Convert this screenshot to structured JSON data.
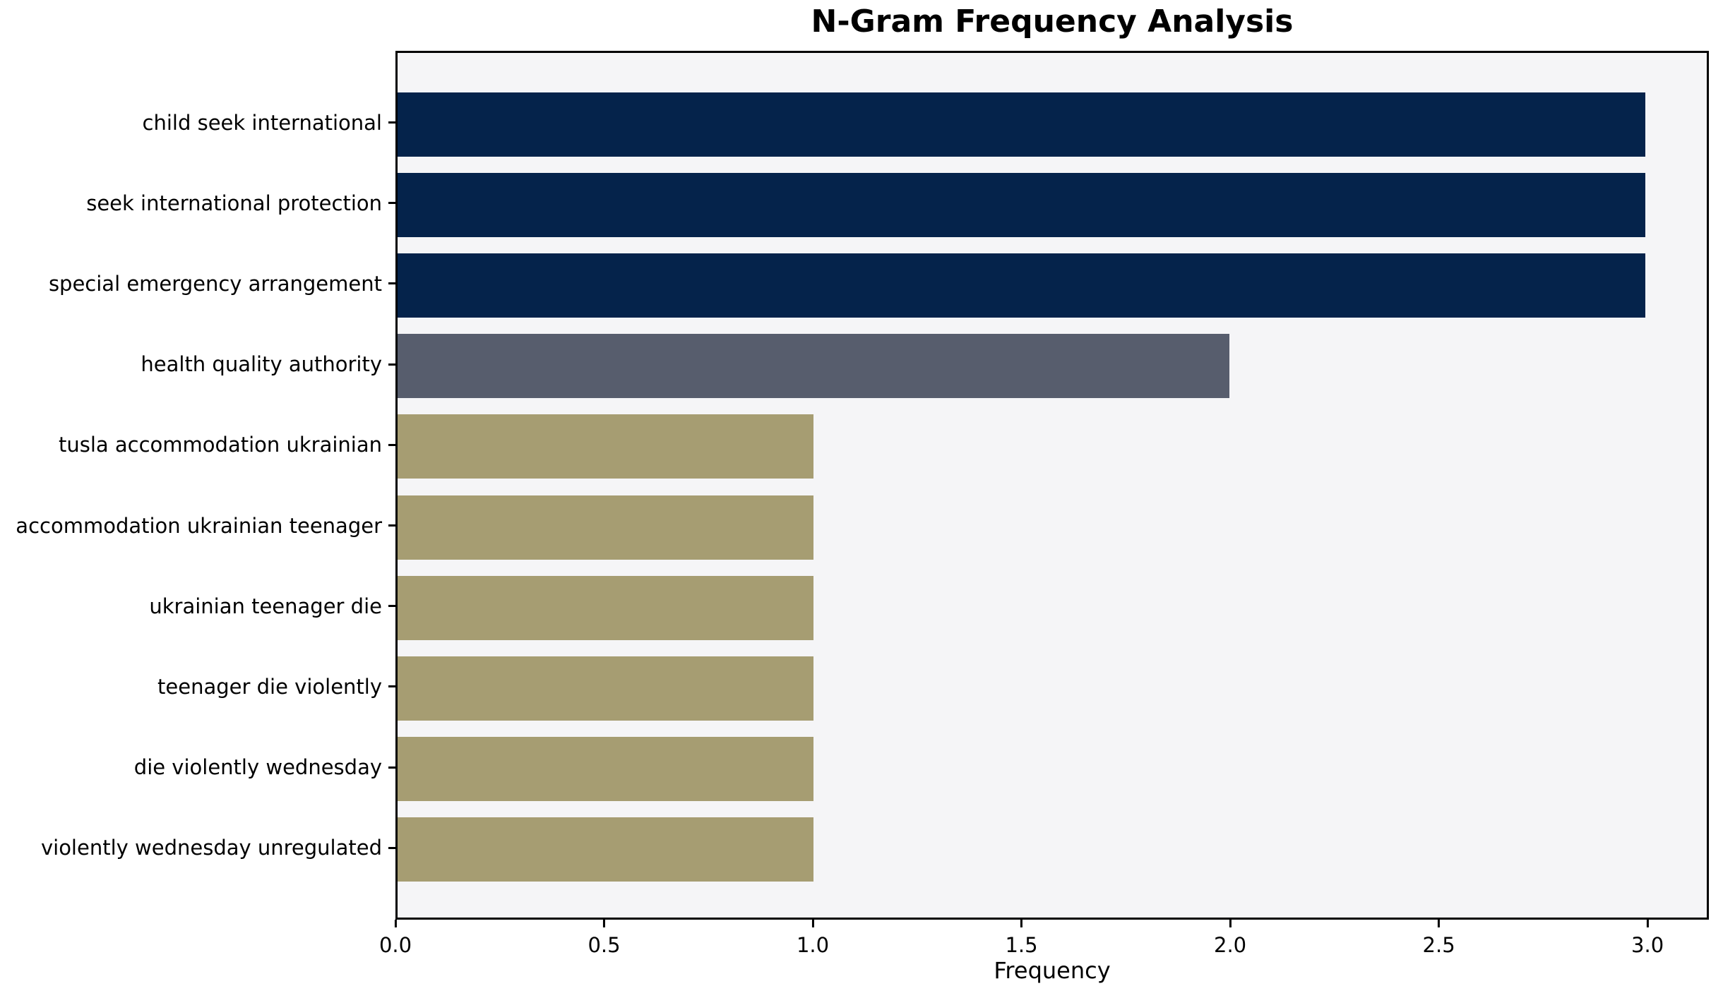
{
  "title": "N-Gram Frequency Analysis",
  "chart_data": {
    "type": "bar",
    "orientation": "horizontal",
    "title": "N-Gram Frequency Analysis",
    "xlabel": "Frequency",
    "ylabel": "",
    "xlim": [
      0,
      3.147
    ],
    "grid": false,
    "legend": "none",
    "categories": [
      "child seek international",
      "seek international protection",
      "special emergency arrangement",
      "health quality authority",
      "tusla accommodation ukrainian",
      "accommodation ukrainian teenager",
      "ukrainian teenager die",
      "teenager die violently",
      "die violently wednesday",
      "violently wednesday unregulated"
    ],
    "values": [
      3,
      3,
      3,
      2,
      1,
      1,
      1,
      1,
      1,
      1
    ],
    "bar_colors": [
      "#05234b",
      "#05234b",
      "#05234b",
      "#575d6d",
      "#a69d72",
      "#a69d72",
      "#a69d72",
      "#a69d72",
      "#a69d72",
      "#a69d72"
    ],
    "xticks": [
      {
        "value": 0.0,
        "label": "0.0"
      },
      {
        "value": 0.5,
        "label": "0.5"
      },
      {
        "value": 1.0,
        "label": "1.0"
      },
      {
        "value": 1.5,
        "label": "1.5"
      },
      {
        "value": 2.0,
        "label": "2.0"
      },
      {
        "value": 2.5,
        "label": "2.5"
      },
      {
        "value": 3.0,
        "label": "3.0"
      }
    ],
    "colors": {
      "navy": "#05234b",
      "slate": "#575d6d",
      "khaki": "#a69d72",
      "plot_background": "#f5f5f7",
      "figure_background": "#ffffff",
      "frame": "#000000",
      "text": "#000000"
    }
  }
}
